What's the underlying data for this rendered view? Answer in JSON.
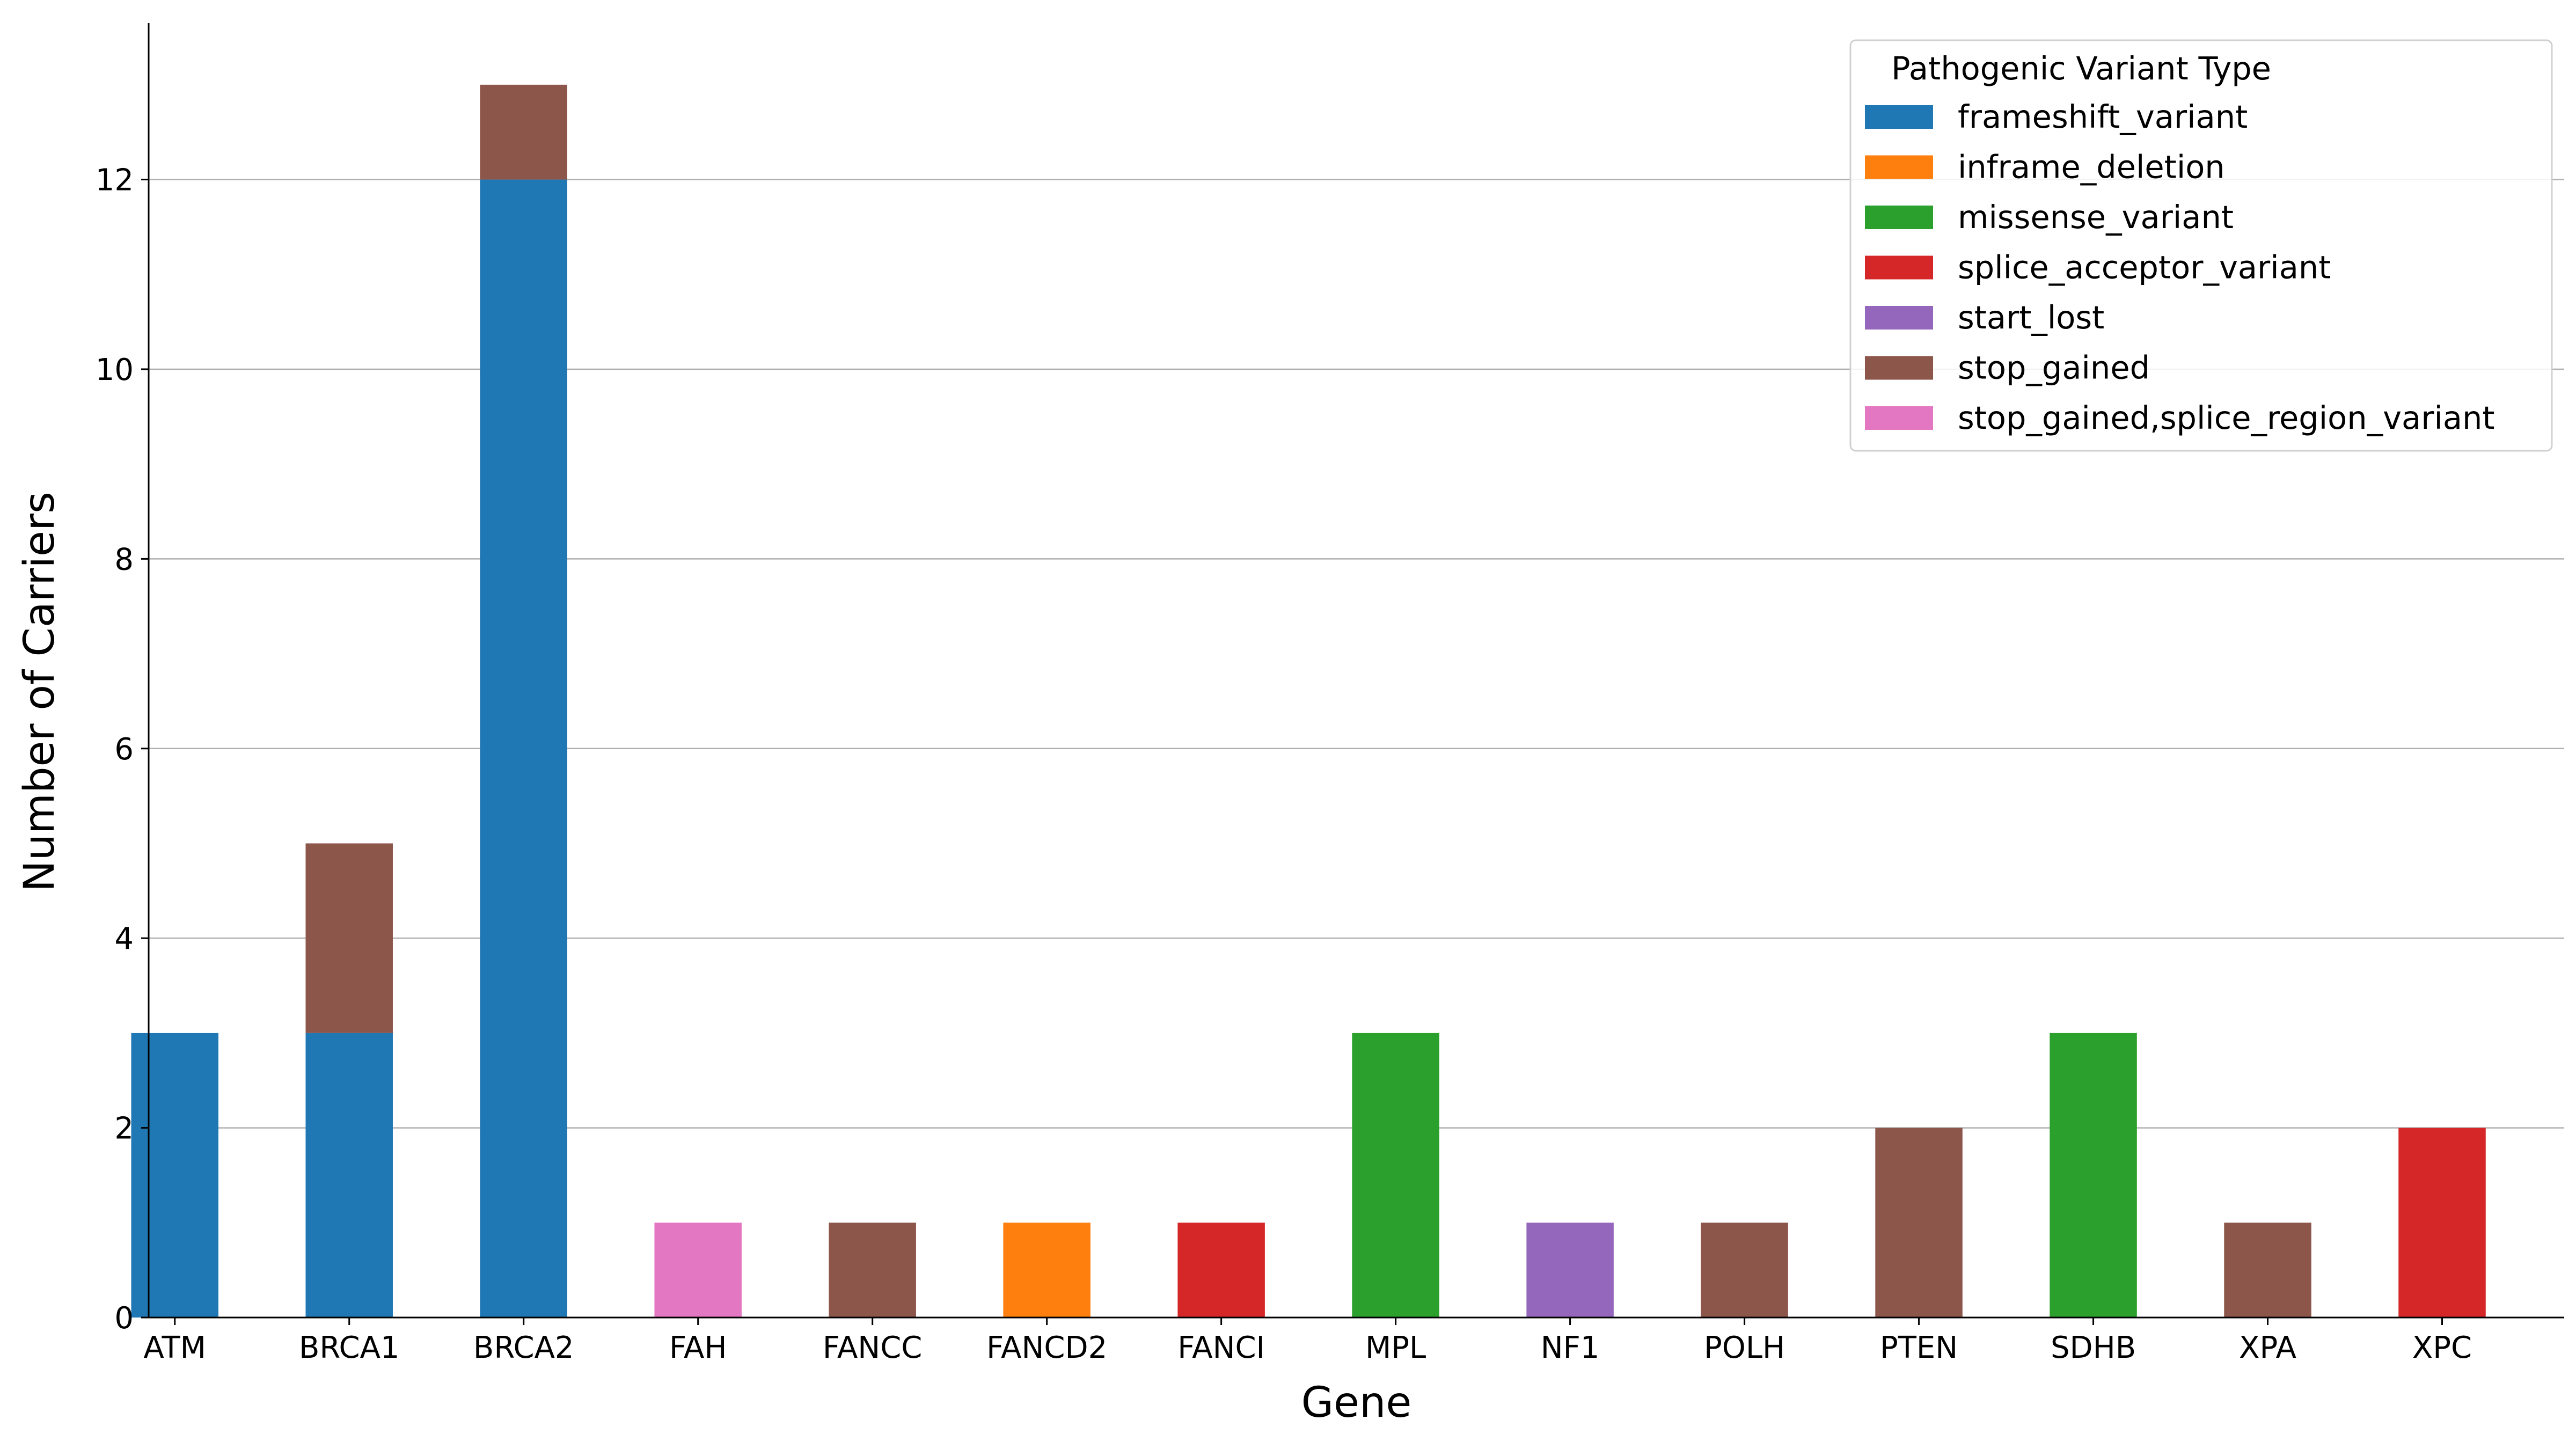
{
  "chart_data": {
    "type": "bar",
    "stacked": true,
    "title": "",
    "xlabel": "Gene",
    "ylabel": "Number of Carriers",
    "ylim": [
      0,
      13.65
    ],
    "yticks": [
      0,
      2,
      4,
      6,
      8,
      10,
      12
    ],
    "grid": "y",
    "legend": {
      "title": "Pathogenic Variant Type",
      "placement": "top-right"
    },
    "categories": [
      "ATM",
      "BRCA1",
      "BRCA2",
      "FAH",
      "FANCC",
      "FANCD2",
      "FANCI",
      "MPL",
      "NF1",
      "POLH",
      "PTEN",
      "SDHB",
      "XPA",
      "XPC"
    ],
    "series": [
      {
        "name": "frameshift_variant",
        "color": "#1f77b4",
        "values": [
          3,
          3,
          12,
          0,
          0,
          0,
          0,
          0,
          0,
          0,
          0,
          0,
          0,
          0
        ]
      },
      {
        "name": "inframe_deletion",
        "color": "#ff7f0e",
        "values": [
          0,
          0,
          0,
          0,
          0,
          1,
          0,
          0,
          0,
          0,
          0,
          0,
          0,
          0
        ]
      },
      {
        "name": "missense_variant",
        "color": "#2ca02c",
        "values": [
          0,
          0,
          0,
          0,
          0,
          0,
          0,
          3,
          0,
          0,
          0,
          3,
          0,
          0
        ]
      },
      {
        "name": "splice_acceptor_variant",
        "color": "#d62728",
        "values": [
          0,
          0,
          0,
          0,
          0,
          0,
          1,
          0,
          0,
          0,
          0,
          0,
          0,
          2
        ]
      },
      {
        "name": "start_lost",
        "color": "#9467bd",
        "values": [
          0,
          0,
          0,
          0,
          0,
          0,
          0,
          0,
          1,
          0,
          0,
          0,
          0,
          0
        ]
      },
      {
        "name": "stop_gained",
        "color": "#8c564b",
        "values": [
          0,
          2,
          1,
          0,
          1,
          0,
          0,
          0,
          0,
          1,
          2,
          0,
          1,
          0
        ]
      },
      {
        "name": "stop_gained,splice_region_variant",
        "color": "#e377c2",
        "values": [
          0,
          0,
          0,
          1,
          0,
          0,
          0,
          0,
          0,
          0,
          0,
          0,
          0,
          0
        ]
      }
    ]
  }
}
